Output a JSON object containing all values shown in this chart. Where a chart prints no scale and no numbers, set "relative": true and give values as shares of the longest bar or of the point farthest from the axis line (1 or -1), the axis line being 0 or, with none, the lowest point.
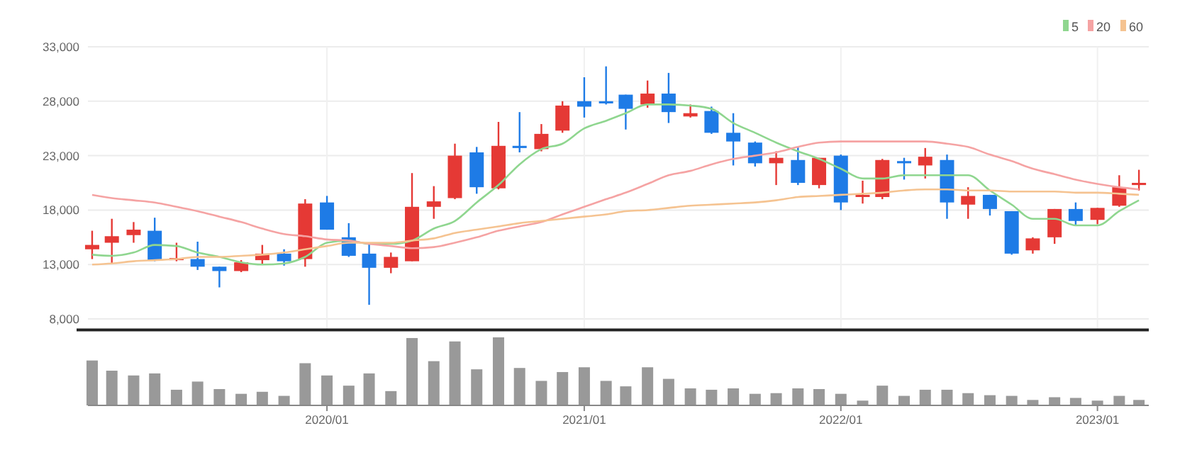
{
  "chart_data": [
    {
      "type": "candlestick",
      "x": [
        "2019-02",
        "2019-03",
        "2019-04",
        "2019-05",
        "2019-06",
        "2019-07",
        "2019-08",
        "2019-09",
        "2019-10",
        "2019-11",
        "2019-12",
        "2020-01",
        "2020-02",
        "2020-03",
        "2020-04",
        "2020-05",
        "2020-06",
        "2020-07",
        "2020-08",
        "2020-09",
        "2020-10",
        "2020-11",
        "2020-12",
        "2021-01",
        "2021-02",
        "2021-03",
        "2021-04",
        "2021-05",
        "2021-06",
        "2021-07",
        "2021-08",
        "2021-09",
        "2021-10",
        "2021-11",
        "2021-12",
        "2022-01",
        "2022-02",
        "2022-03",
        "2022-04",
        "2022-05",
        "2022-06",
        "2022-07",
        "2022-08",
        "2022-09",
        "2022-10",
        "2022-11",
        "2022-12",
        "2023-01",
        "2023-02",
        "2023-03"
      ],
      "ohlc": [
        [
          14400,
          16100,
          13500,
          14800
        ],
        [
          15000,
          17200,
          13100,
          15600
        ],
        [
          15700,
          16900,
          15000,
          16200
        ],
        [
          16100,
          17300,
          13300,
          13400
        ],
        [
          13400,
          15000,
          13300,
          13600
        ],
        [
          13500,
          15100,
          12500,
          12800
        ],
        [
          12800,
          12800,
          10900,
          12400
        ],
        [
          12400,
          13400,
          12300,
          13200
        ],
        [
          13400,
          14800,
          13000,
          14000
        ],
        [
          14000,
          14400,
          12900,
          13300
        ],
        [
          13500,
          19000,
          12800,
          18600
        ],
        [
          18700,
          19300,
          16200,
          16200
        ],
        [
          15500,
          16800,
          13700,
          13800
        ],
        [
          14000,
          15000,
          9300,
          12700
        ],
        [
          12700,
          14100,
          12200,
          13700
        ],
        [
          13300,
          21400,
          13300,
          18300
        ],
        [
          18300,
          20200,
          17200,
          18800
        ],
        [
          19100,
          24100,
          19000,
          23000
        ],
        [
          23300,
          23800,
          19500,
          20100
        ],
        [
          20000,
          26100,
          19900,
          23900
        ],
        [
          23900,
          27000,
          23300,
          23700
        ],
        [
          23600,
          25900,
          23400,
          25000
        ],
        [
          25300,
          28000,
          25100,
          27600
        ],
        [
          28000,
          30200,
          26500,
          27500
        ],
        [
          28000,
          31200,
          27700,
          27800
        ],
        [
          28600,
          28600,
          25400,
          27300
        ],
        [
          27700,
          29900,
          27400,
          28700
        ],
        [
          28700,
          30600,
          26000,
          27000
        ],
        [
          26600,
          27700,
          26500,
          26900
        ],
        [
          27100,
          27500,
          25000,
          25100
        ],
        [
          25100,
          26900,
          22100,
          24300
        ],
        [
          24200,
          24300,
          22000,
          22300
        ],
        [
          22300,
          23400,
          20300,
          22800
        ],
        [
          22600,
          23800,
          20300,
          20500
        ],
        [
          20300,
          22800,
          20000,
          22800
        ],
        [
          23000,
          23100,
          18000,
          18700
        ],
        [
          19200,
          20700,
          18600,
          19400
        ],
        [
          19200,
          22700,
          19000,
          22600
        ],
        [
          22500,
          22800,
          20800,
          22300
        ],
        [
          22100,
          23700,
          20900,
          22900
        ],
        [
          22600,
          23100,
          17200,
          18700
        ],
        [
          18500,
          20100,
          17200,
          19300
        ],
        [
          19400,
          19400,
          17500,
          18100
        ],
        [
          17900,
          17900,
          13900,
          14000
        ],
        [
          14300,
          15500,
          14000,
          15400
        ],
        [
          15500,
          18100,
          14900,
          18100
        ],
        [
          18100,
          18700,
          16600,
          17000
        ],
        [
          17100,
          18200,
          16700,
          18200
        ],
        [
          18400,
          21200,
          18300,
          20100
        ],
        [
          20300,
          21700,
          19800,
          20500
        ]
      ],
      "colors": [
        "#e53935",
        "#e53935",
        "#e53935",
        "#1e7be6",
        "#e53935",
        "#1e7be6",
        "#1e7be6",
        "#e53935",
        "#e53935",
        "#1e7be6",
        "#e53935",
        "#1e7be6",
        "#1e7be6",
        "#1e7be6",
        "#e53935",
        "#e53935",
        "#e53935",
        "#e53935",
        "#1e7be6",
        "#e53935",
        "#1e7be6",
        "#e53935",
        "#e53935",
        "#1e7be6",
        "#1e7be6",
        "#1e7be6",
        "#e53935",
        "#1e7be6",
        "#e53935",
        "#1e7be6",
        "#1e7be6",
        "#1e7be6",
        "#e53935",
        "#1e7be6",
        "#e53935",
        "#1e7be6",
        "#e53935",
        "#e53935",
        "#1e7be6",
        "#e53935",
        "#1e7be6",
        "#e53935",
        "#1e7be6",
        "#1e7be6",
        "#e53935",
        "#e53935",
        "#1e7be6",
        "#e53935",
        "#e53935",
        "#e53935"
      ],
      "series": [
        {
          "type": "line",
          "name": "5",
          "color": "#8fd68f",
          "values": [
            13900,
            13800,
            14100,
            14800,
            14700,
            14100,
            13700,
            13200,
            13000,
            13100,
            13700,
            15000,
            15200,
            14900,
            14900,
            15200,
            16300,
            17000,
            18700,
            20300,
            22200,
            23600,
            24100,
            25500,
            26200,
            26900,
            27700,
            27700,
            27600,
            27300,
            26000,
            25100,
            24200,
            23400,
            22700,
            21800,
            20900,
            20900,
            21200,
            21200,
            21200,
            21200,
            19800,
            18500,
            17200,
            17200,
            16600,
            16600,
            17900,
            18900
          ]
        },
        {
          "type": "line",
          "name": "20",
          "color": "#f5a3a3",
          "values": [
            19400,
            19100,
            18900,
            18700,
            18300,
            17900,
            17400,
            16900,
            16300,
            15800,
            15600,
            15300,
            15200,
            14900,
            14700,
            14500,
            14600,
            15000,
            15500,
            16100,
            16500,
            16900,
            17600,
            18300,
            19000,
            19600,
            20400,
            21200,
            21600,
            22200,
            22700,
            23000,
            23300,
            23800,
            24200,
            24300,
            24300,
            24300,
            24300,
            24300,
            24100,
            23800,
            23100,
            22500,
            21800,
            21300,
            20800,
            20400,
            20100,
            19900
          ]
        },
        {
          "type": "line",
          "name": "60",
          "color": "#f5c391",
          "values": [
            13000,
            13100,
            13300,
            13400,
            13500,
            13700,
            13700,
            13800,
            13900,
            14100,
            14400,
            14700,
            15000,
            15000,
            15000,
            15200,
            15400,
            15900,
            16200,
            16500,
            16800,
            17000,
            17200,
            17400,
            17600,
            17900,
            18000,
            18200,
            18400,
            18500,
            18600,
            18700,
            18900,
            19200,
            19300,
            19400,
            19500,
            19600,
            19800,
            19900,
            19900,
            19800,
            19800,
            19700,
            19700,
            19700,
            19600,
            19600,
            19500,
            19400
          ]
        }
      ],
      "xlim": [
        "2019-01-26",
        "2023-03-15"
      ],
      "xticks": [
        {
          "value": "2020-01",
          "label": null
        },
        {
          "value": "2021-01",
          "label": null
        },
        {
          "value": "2022-01",
          "label": null
        },
        {
          "value": "2023-01",
          "label": null
        }
      ],
      "ylim": [
        7000,
        33000
      ],
      "yticks": [
        {
          "value": 8000,
          "label": "8,000"
        },
        {
          "value": 13000,
          "label": "13,000"
        },
        {
          "value": 18000,
          "label": "18,000"
        },
        {
          "value": 23000,
          "label": "23,000"
        },
        {
          "value": 28000,
          "label": "28,000"
        },
        {
          "value": 33000,
          "label": "33,000"
        }
      ],
      "tick_labels": "y",
      "grid": true,
      "legend": "top right"
    },
    {
      "type": "bar",
      "relative": true,
      "color": "#999999",
      "x": [
        "2019-02",
        "2019-03",
        "2019-04",
        "2019-05",
        "2019-06",
        "2019-07",
        "2019-08",
        "2019-09",
        "2019-10",
        "2019-11",
        "2019-12",
        "2020-01",
        "2020-02",
        "2020-03",
        "2020-04",
        "2020-05",
        "2020-06",
        "2020-07",
        "2020-08",
        "2020-09",
        "2020-10",
        "2020-11",
        "2020-12",
        "2021-01",
        "2021-02",
        "2021-03",
        "2021-04",
        "2021-05",
        "2021-06",
        "2021-07",
        "2021-08",
        "2021-09",
        "2021-10",
        "2021-11",
        "2021-12",
        "2022-01",
        "2022-02",
        "2022-03",
        "2022-04",
        "2022-05",
        "2022-06",
        "2022-07",
        "2022-08",
        "2022-09",
        "2022-10",
        "2022-11",
        "2022-12",
        "2023-01",
        "2023-02",
        "2023-03"
      ],
      "values": [
        0.66,
        0.51,
        0.44,
        0.47,
        0.23,
        0.35,
        0.24,
        0.17,
        0.2,
        0.14,
        0.62,
        0.44,
        0.29,
        0.47,
        0.21,
        0.99,
        0.65,
        0.94,
        0.53,
        1,
        0.55,
        0.36,
        0.49,
        0.56,
        0.36,
        0.28,
        0.56,
        0.39,
        0.25,
        0.23,
        0.25,
        0.17,
        0.18,
        0.25,
        0.24,
        0.17,
        0.07,
        0.29,
        0.14,
        0.23,
        0.23,
        0.18,
        0.15,
        0.14,
        0.08,
        0.12,
        0.11,
        0.07,
        0.14,
        0.08
      ],
      "xlim": [
        "2019-01-26",
        "2023-03-15"
      ],
      "xticks": [
        {
          "value": "2020-01",
          "label": "2020/01"
        },
        {
          "value": "2021-01",
          "label": "2021/01"
        },
        {
          "value": "2022-01",
          "label": "2022/01"
        },
        {
          "value": "2023-01",
          "label": "2023/01"
        }
      ],
      "tick_labels": "x"
    }
  ]
}
